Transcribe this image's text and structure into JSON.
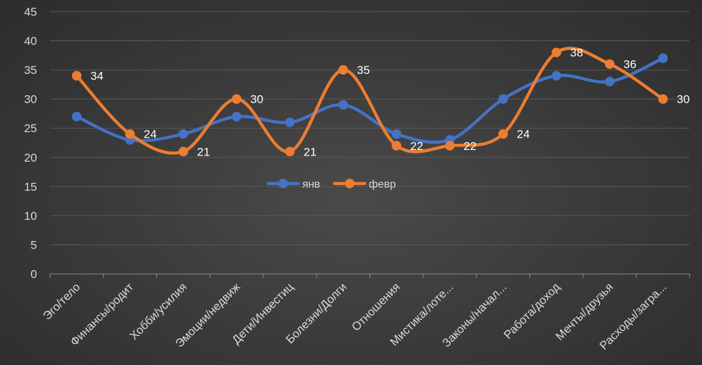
{
  "chart_data": {
    "type": "line",
    "title": "",
    "xlabel": "",
    "ylabel": "",
    "ylim": [
      0,
      45
    ],
    "ytick_step": 5,
    "grid": true,
    "legend_position": "center",
    "categories": [
      "Эго/тело",
      "Финансы/родит",
      "Хобби/усилия",
      "Эмоции/недвиж",
      "Дети/Инвестиц",
      "Болезни/Долги",
      "Отношения",
      "Мистика/лоте...",
      "Законы/начал...",
      "Работа/доход",
      "Мечты/друзья",
      "Расходы/загра..."
    ],
    "series": [
      {
        "name": "янв",
        "color": "#4472c4",
        "values": [
          27,
          23,
          24,
          27,
          26,
          29,
          24,
          23,
          30,
          34,
          33,
          37
        ],
        "data_labels": false
      },
      {
        "name": "февр",
        "color": "#ed7d31",
        "values": [
          34,
          24,
          21,
          30,
          21,
          35,
          22,
          22,
          24,
          38,
          36,
          30
        ],
        "data_labels": true
      }
    ]
  }
}
